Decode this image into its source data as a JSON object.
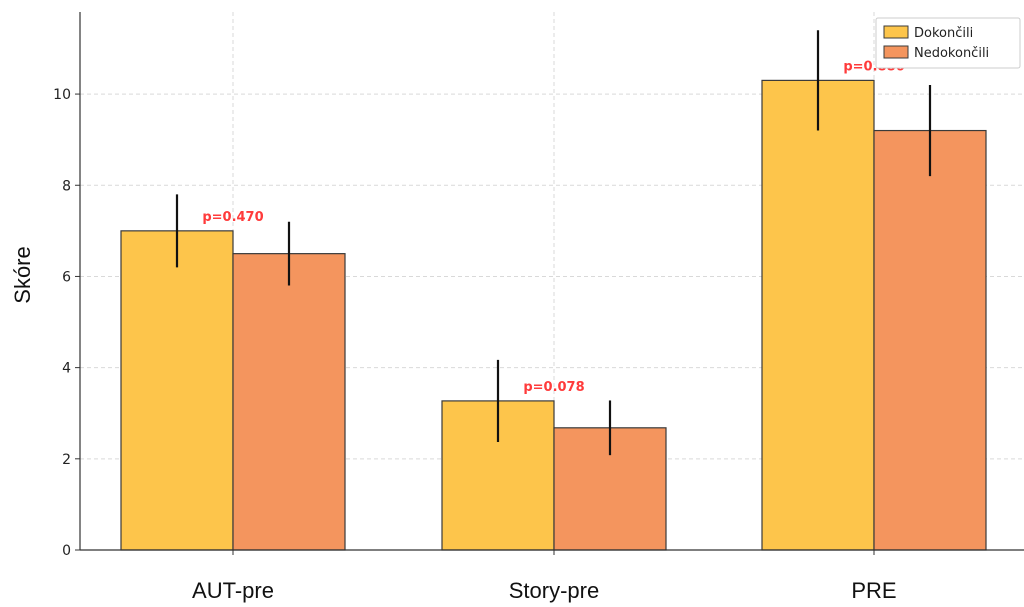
{
  "chart_data": {
    "type": "bar",
    "title": "",
    "xlabel": "",
    "ylabel": "Skóre",
    "categories": [
      "AUT-pre",
      "Story-pre",
      "PRE"
    ],
    "series": [
      {
        "name": "Dokončili",
        "color": "#FDC54B",
        "values": [
          7.0,
          3.27,
          10.3
        ],
        "error": [
          0.8,
          0.9,
          1.1
        ]
      },
      {
        "name": "Nedokončili",
        "color": "#F4955E",
        "values": [
          6.5,
          2.68,
          9.2
        ],
        "error": [
          0.7,
          0.6,
          1.0
        ]
      }
    ],
    "annotations": [
      "p=0.470",
      "p=0.078",
      "p=0.886"
    ],
    "annotation_color": "#FF3B3B",
    "yticks": [
      0,
      2,
      4,
      6,
      8,
      10
    ],
    "ylim": [
      0,
      11.8
    ],
    "grid": true,
    "legend_position": "top-right"
  }
}
